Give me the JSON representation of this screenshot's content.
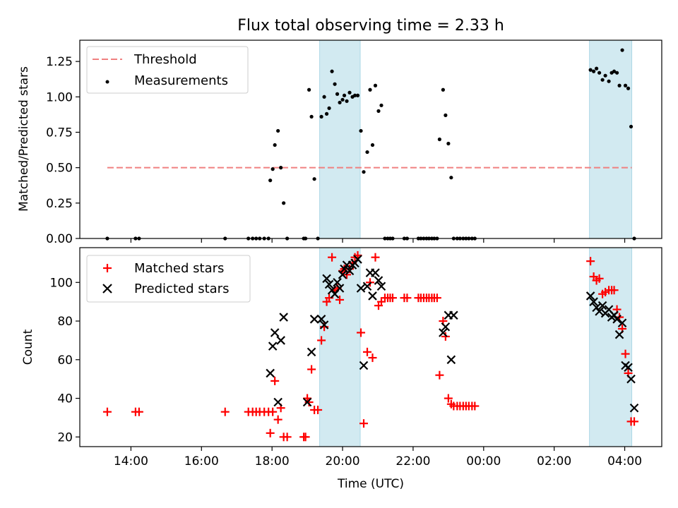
{
  "chart_data": [
    {
      "type": "scatter",
      "title": "Flux total observing time = 2.33 h",
      "xlabel": "",
      "ylabel": "Matched/Predicted stars",
      "xlim": [
        12.55,
        29.05
      ],
      "ylim": [
        0.0,
        1.4
      ],
      "yticks": [
        "0.00",
        "0.25",
        "0.50",
        "0.75",
        "1.00",
        "1.25"
      ],
      "legend_position": "upper-left",
      "grid": false,
      "shaded_spans": [
        [
          19.35,
          20.5
        ],
        [
          27.0,
          28.2
        ]
      ],
      "shaded_color": "#add8e6",
      "threshold": {
        "name": "Threshold",
        "value": 0.5,
        "x_range": [
          13.33,
          28.2
        ],
        "color": "#f08080"
      },
      "series": [
        {
          "name": "Measurements",
          "color": "#000000",
          "marker": "dot",
          "points": [
            [
              13.33,
              0.0
            ],
            [
              14.13,
              0.0
            ],
            [
              14.23,
              0.0
            ],
            [
              16.67,
              0.0
            ],
            [
              17.33,
              0.0
            ],
            [
              17.45,
              0.0
            ],
            [
              17.55,
              0.0
            ],
            [
              17.65,
              0.0
            ],
            [
              17.78,
              0.0
            ],
            [
              17.9,
              0.0
            ],
            [
              17.95,
              0.41
            ],
            [
              18.02,
              0.49
            ],
            [
              18.08,
              0.66
            ],
            [
              18.17,
              0.76
            ],
            [
              18.25,
              0.5
            ],
            [
              18.33,
              0.25
            ],
            [
              18.43,
              0.0
            ],
            [
              18.9,
              0.0
            ],
            [
              18.95,
              0.0
            ],
            [
              19.05,
              1.05
            ],
            [
              19.12,
              0.86
            ],
            [
              19.2,
              0.42
            ],
            [
              19.3,
              0.0
            ],
            [
              19.4,
              0.86
            ],
            [
              19.48,
              1.0
            ],
            [
              19.55,
              0.88
            ],
            [
              19.62,
              0.92
            ],
            [
              19.7,
              1.18
            ],
            [
              19.78,
              1.09
            ],
            [
              19.85,
              1.02
            ],
            [
              19.92,
              0.96
            ],
            [
              20.0,
              0.98
            ],
            [
              20.05,
              1.01
            ],
            [
              20.12,
              0.97
            ],
            [
              20.2,
              1.03
            ],
            [
              20.28,
              1.0
            ],
            [
              20.35,
              1.01
            ],
            [
              20.43,
              1.01
            ],
            [
              20.52,
              0.76
            ],
            [
              20.6,
              0.47
            ],
            [
              20.7,
              0.61
            ],
            [
              20.78,
              1.05
            ],
            [
              20.85,
              0.66
            ],
            [
              20.93,
              1.08
            ],
            [
              21.02,
              0.9
            ],
            [
              21.1,
              0.94
            ],
            [
              21.2,
              0.0
            ],
            [
              21.28,
              0.0
            ],
            [
              21.35,
              0.0
            ],
            [
              21.42,
              0.0
            ],
            [
              21.75,
              0.0
            ],
            [
              21.83,
              0.0
            ],
            [
              22.15,
              0.0
            ],
            [
              22.22,
              0.0
            ],
            [
              22.3,
              0.0
            ],
            [
              22.38,
              0.0
            ],
            [
              22.45,
              0.0
            ],
            [
              22.53,
              0.0
            ],
            [
              22.6,
              0.0
            ],
            [
              22.68,
              0.0
            ],
            [
              22.75,
              0.7
            ],
            [
              22.85,
              1.05
            ],
            [
              22.92,
              0.87
            ],
            [
              23.0,
              0.67
            ],
            [
              23.08,
              0.43
            ],
            [
              23.15,
              0.0
            ],
            [
              23.25,
              0.0
            ],
            [
              23.33,
              0.0
            ],
            [
              23.42,
              0.0
            ],
            [
              23.5,
              0.0
            ],
            [
              23.58,
              0.0
            ],
            [
              23.67,
              0.0
            ],
            [
              23.75,
              0.0
            ],
            [
              27.03,
              1.19
            ],
            [
              27.12,
              1.18
            ],
            [
              27.2,
              1.2
            ],
            [
              27.28,
              1.17
            ],
            [
              27.37,
              1.12
            ],
            [
              27.45,
              1.15
            ],
            [
              27.55,
              1.11
            ],
            [
              27.63,
              1.17
            ],
            [
              27.7,
              1.18
            ],
            [
              27.78,
              1.17
            ],
            [
              27.85,
              1.08
            ],
            [
              27.93,
              1.33
            ],
            [
              28.02,
              1.08
            ],
            [
              28.1,
              1.06
            ],
            [
              28.18,
              0.79
            ],
            [
              28.27,
              0.0
            ]
          ]
        }
      ]
    },
    {
      "type": "scatter",
      "title": "",
      "xlabel": "Time (UTC)",
      "ylabel": "Count",
      "xlim": [
        12.55,
        29.05
      ],
      "ylim": [
        15,
        118
      ],
      "yticks": [
        "20",
        "40",
        "60",
        "80",
        "100"
      ],
      "xticks": [
        {
          "value": 14,
          "label": "14:00"
        },
        {
          "value": 16,
          "label": "16:00"
        },
        {
          "value": 18,
          "label": "18:00"
        },
        {
          "value": 20,
          "label": "20:00"
        },
        {
          "value": 22,
          "label": "22:00"
        },
        {
          "value": 24,
          "label": "00:00"
        },
        {
          "value": 26,
          "label": "02:00"
        },
        {
          "value": 28,
          "label": "04:00"
        }
      ],
      "legend_position": "upper-left",
      "grid": false,
      "shaded_spans": [
        [
          19.35,
          20.5
        ],
        [
          27.0,
          28.2
        ]
      ],
      "shaded_color": "#add8e6",
      "series": [
        {
          "name": "Matched stars",
          "color": "#ff0000",
          "marker": "plus",
          "points": [
            [
              13.33,
              33
            ],
            [
              14.13,
              33
            ],
            [
              14.23,
              33
            ],
            [
              16.67,
              33
            ],
            [
              17.33,
              33
            ],
            [
              17.45,
              33
            ],
            [
              17.55,
              33
            ],
            [
              17.65,
              33
            ],
            [
              17.78,
              33
            ],
            [
              17.9,
              33
            ],
            [
              17.95,
              22
            ],
            [
              18.02,
              33
            ],
            [
              18.08,
              49
            ],
            [
              18.17,
              29
            ],
            [
              18.25,
              35
            ],
            [
              18.33,
              20
            ],
            [
              18.43,
              20
            ],
            [
              18.9,
              20
            ],
            [
              18.95,
              20
            ],
            [
              19.0,
              40
            ],
            [
              19.05,
              38
            ],
            [
              19.12,
              55
            ],
            [
              19.2,
              34
            ],
            [
              19.3,
              34
            ],
            [
              19.4,
              70
            ],
            [
              19.48,
              77
            ],
            [
              19.55,
              90
            ],
            [
              19.62,
              92
            ],
            [
              19.7,
              113
            ],
            [
              19.78,
              96
            ],
            [
              19.85,
              97
            ],
            [
              19.92,
              91
            ],
            [
              20.0,
              106
            ],
            [
              20.05,
              107
            ],
            [
              20.12,
              104
            ],
            [
              20.2,
              107
            ],
            [
              20.28,
              110
            ],
            [
              20.35,
              113
            ],
            [
              20.43,
              114
            ],
            [
              20.52,
              74
            ],
            [
              20.6,
              27
            ],
            [
              20.7,
              64
            ],
            [
              20.78,
              100
            ],
            [
              20.85,
              61
            ],
            [
              20.93,
              113
            ],
            [
              21.02,
              88
            ],
            [
              21.1,
              90
            ],
            [
              21.2,
              92
            ],
            [
              21.28,
              92
            ],
            [
              21.35,
              92
            ],
            [
              21.42,
              92
            ],
            [
              21.75,
              92
            ],
            [
              21.83,
              92
            ],
            [
              22.15,
              92
            ],
            [
              22.22,
              92
            ],
            [
              22.3,
              92
            ],
            [
              22.38,
              92
            ],
            [
              22.45,
              92
            ],
            [
              22.53,
              92
            ],
            [
              22.6,
              92
            ],
            [
              22.68,
              92
            ],
            [
              22.75,
              52
            ],
            [
              22.85,
              80
            ],
            [
              22.92,
              72
            ],
            [
              23.0,
              40
            ],
            [
              23.08,
              37
            ],
            [
              23.15,
              36
            ],
            [
              23.25,
              36
            ],
            [
              23.33,
              36
            ],
            [
              23.42,
              36
            ],
            [
              23.5,
              36
            ],
            [
              23.58,
              36
            ],
            [
              23.67,
              36
            ],
            [
              23.75,
              36
            ],
            [
              27.03,
              111
            ],
            [
              27.12,
              103
            ],
            [
              27.2,
              101
            ],
            [
              27.28,
              102
            ],
            [
              27.37,
              94
            ],
            [
              27.45,
              95
            ],
            [
              27.55,
              96
            ],
            [
              27.63,
              96
            ],
            [
              27.7,
              96
            ],
            [
              27.78,
              86
            ],
            [
              27.85,
              82
            ],
            [
              27.93,
              76
            ],
            [
              28.02,
              63
            ],
            [
              28.1,
              53
            ],
            [
              28.18,
              28
            ],
            [
              28.27,
              28
            ]
          ]
        },
        {
          "name": "Predicted stars",
          "color": "#000000",
          "marker": "cross",
          "points": [
            [
              17.95,
              53
            ],
            [
              18.02,
              67
            ],
            [
              18.08,
              74
            ],
            [
              18.17,
              38
            ],
            [
              18.25,
              70
            ],
            [
              18.33,
              82
            ],
            [
              19.0,
              38
            ],
            [
              19.12,
              64
            ],
            [
              19.2,
              81
            ],
            [
              19.4,
              81
            ],
            [
              19.48,
              78
            ],
            [
              19.55,
              102
            ],
            [
              19.62,
              99
            ],
            [
              19.7,
              96
            ],
            [
              19.78,
              94
            ],
            [
              19.85,
              100
            ],
            [
              19.92,
              97
            ],
            [
              20.0,
              104
            ],
            [
              20.05,
              107
            ],
            [
              20.12,
              109
            ],
            [
              20.2,
              106
            ],
            [
              20.28,
              109
            ],
            [
              20.35,
              110
            ],
            [
              20.43,
              112
            ],
            [
              20.52,
              97
            ],
            [
              20.6,
              57
            ],
            [
              20.7,
              98
            ],
            [
              20.78,
              105
            ],
            [
              20.85,
              93
            ],
            [
              20.93,
              105
            ],
            [
              21.02,
              101
            ],
            [
              21.1,
              98
            ],
            [
              22.85,
              74
            ],
            [
              22.92,
              77
            ],
            [
              23.0,
              83
            ],
            [
              23.08,
              60
            ],
            [
              23.15,
              83
            ],
            [
              27.03,
              93
            ],
            [
              27.12,
              90
            ],
            [
              27.2,
              87
            ],
            [
              27.28,
              85
            ],
            [
              27.37,
              88
            ],
            [
              27.45,
              84
            ],
            [
              27.55,
              86
            ],
            [
              27.63,
              82
            ],
            [
              27.7,
              83
            ],
            [
              27.78,
              81
            ],
            [
              27.85,
              73
            ],
            [
              27.93,
              79
            ],
            [
              28.02,
              57
            ],
            [
              28.1,
              56
            ],
            [
              28.18,
              50
            ],
            [
              28.27,
              35
            ]
          ]
        }
      ]
    }
  ]
}
